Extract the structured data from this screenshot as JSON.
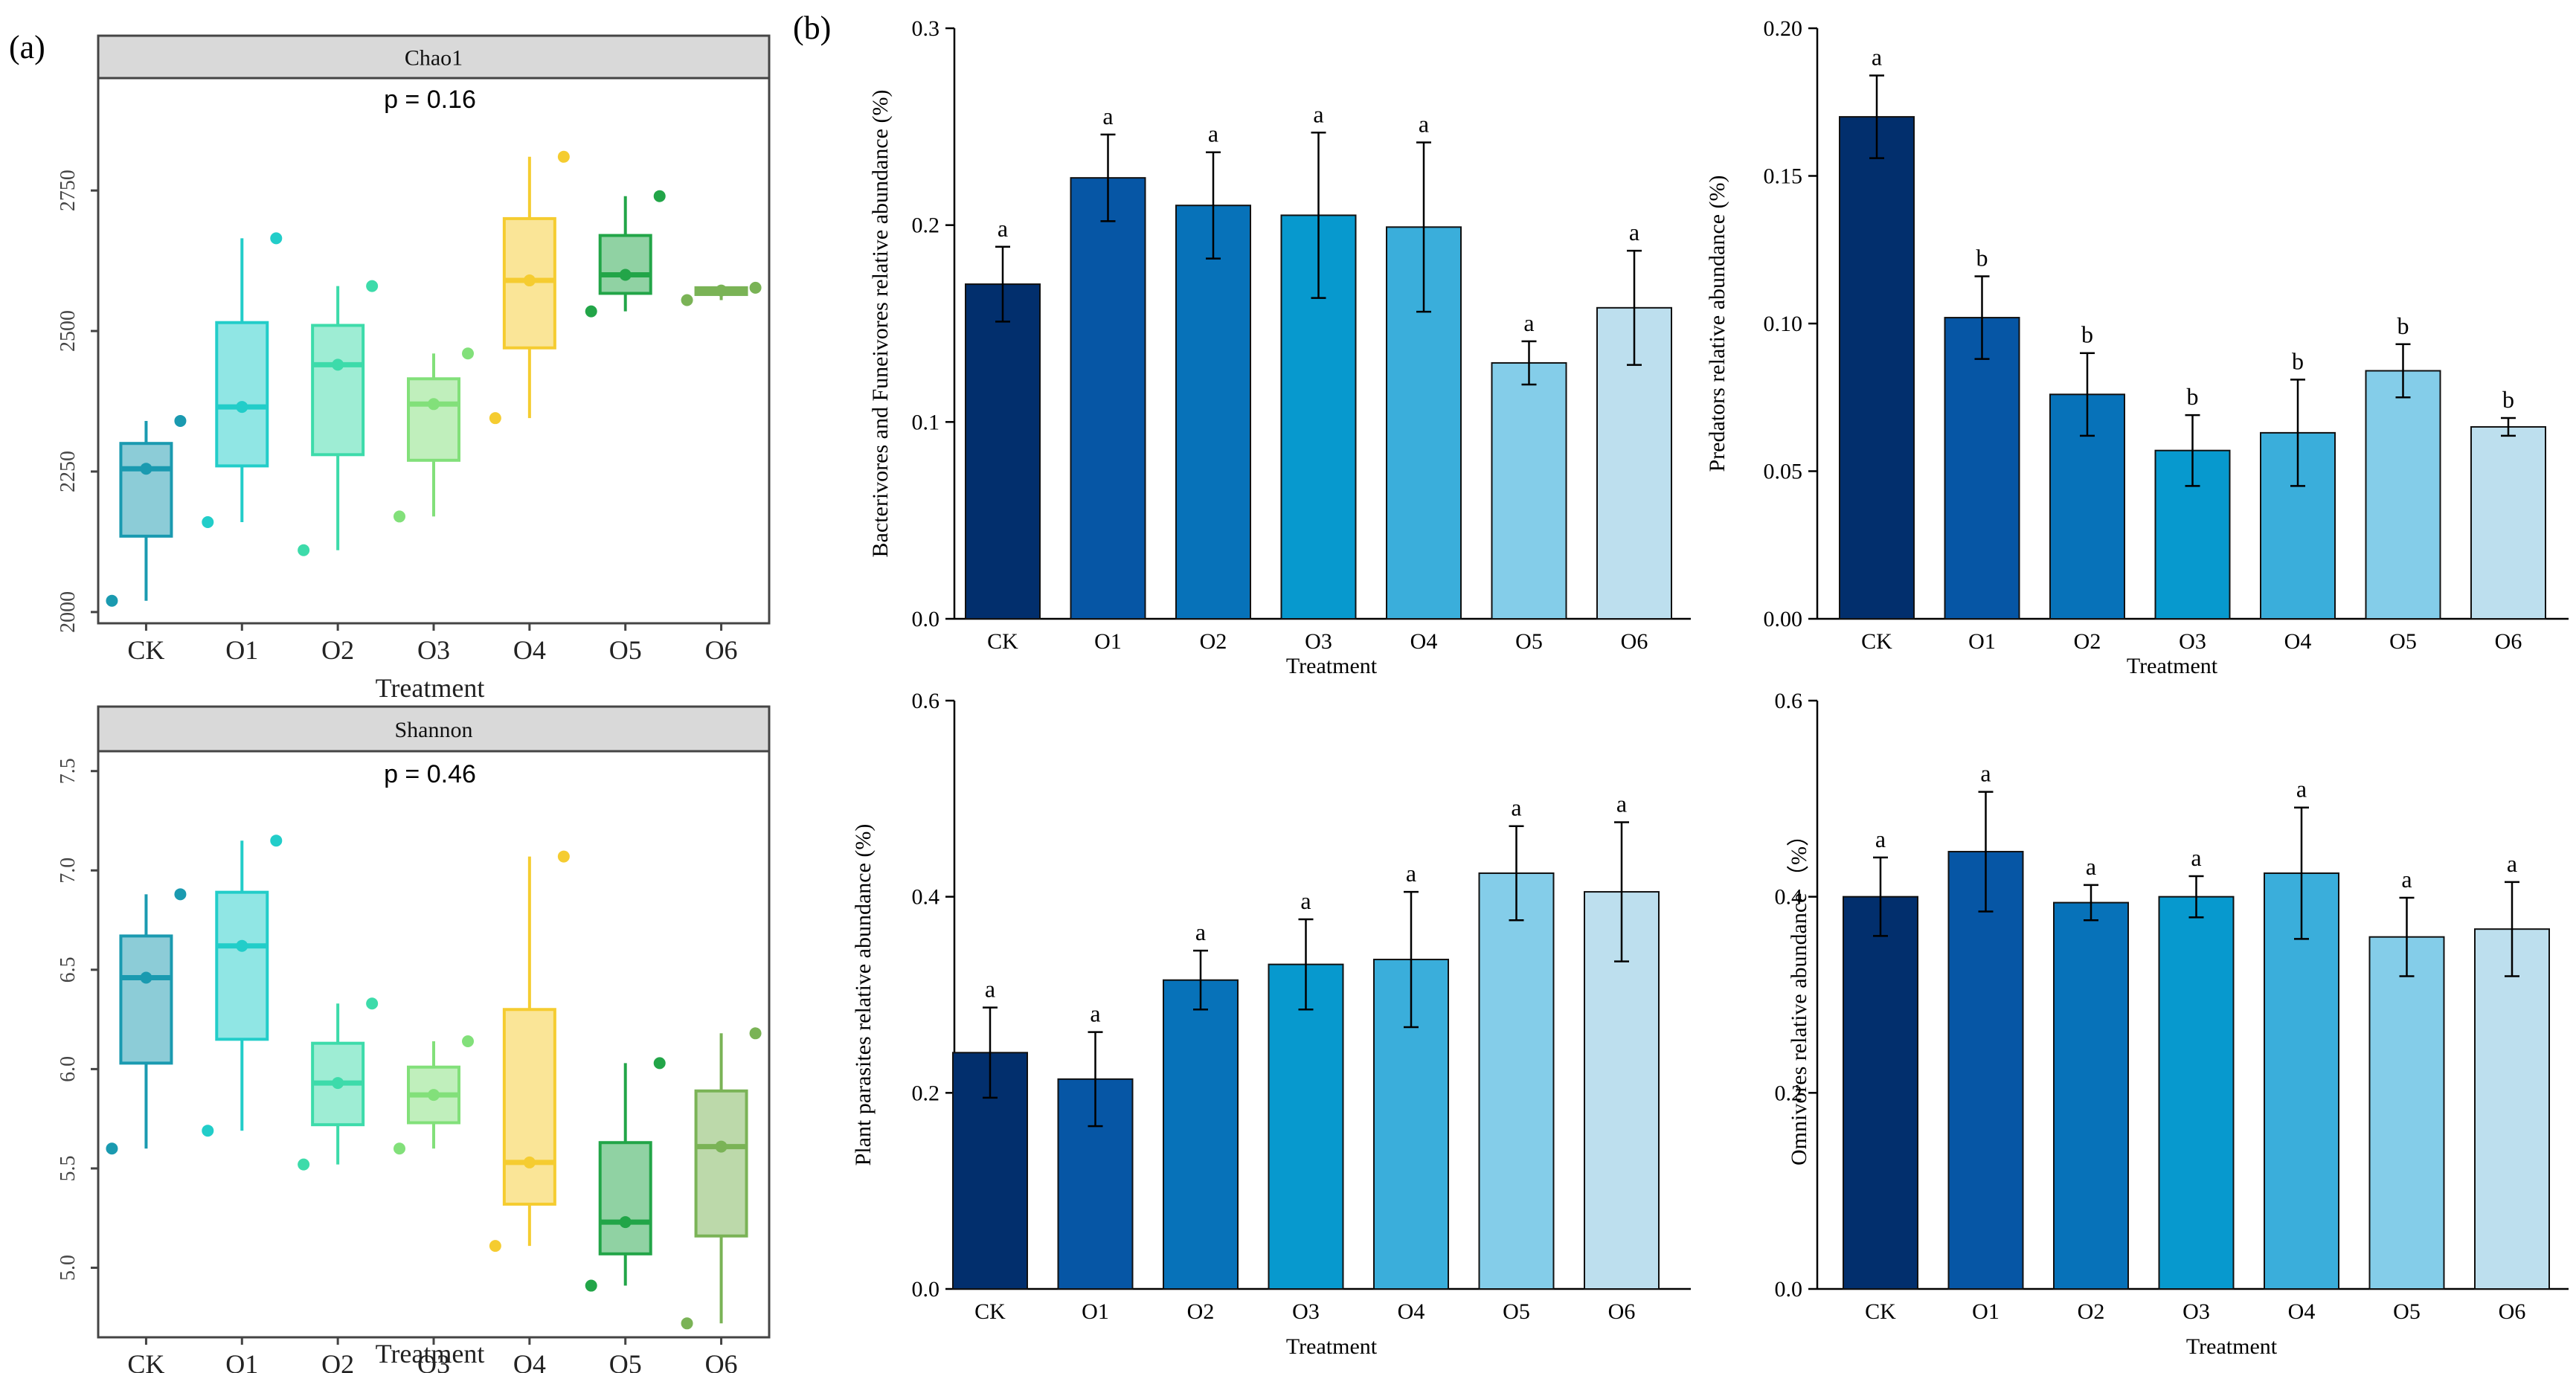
{
  "figure": {
    "panel_a_label": "(a)",
    "panel_b_label": "(b)",
    "treatments": [
      "CK",
      "O1",
      "O2",
      "O3",
      "O4",
      "O5",
      "O6"
    ],
    "box_colors": [
      "#1a9ab0",
      "#22cdc9",
      "#3ddbaa",
      "#82e07a",
      "#f5cc30",
      "#22a548",
      "#7ab356"
    ],
    "bar_colors": [
      "#022f6d",
      "#0656a5",
      "#0772b9",
      "#0799ce",
      "#3aaedb",
      "#84cde9",
      "#bddfee"
    ]
  },
  "chart_data": [
    {
      "id": "chao1",
      "type": "box",
      "strip_title": "Chao1",
      "annotation": "p = 0.16",
      "xlabel": "Treatment",
      "ylabel": "",
      "ylim": [
        1980,
        2950
      ],
      "yticks": [
        2000,
        2250,
        2500,
        2750
      ],
      "categories": [
        "CK",
        "O1",
        "O2",
        "O3",
        "O4",
        "O5",
        "O6"
      ],
      "boxes": [
        {
          "min": 2020,
          "q1": 2135,
          "median": 2255,
          "q3": 2300,
          "max": 2340,
          "points": [
            2020,
            2255,
            2340
          ]
        },
        {
          "min": 2160,
          "q1": 2260,
          "median": 2365,
          "q3": 2515,
          "max": 2665,
          "points": [
            2160,
            2365,
            2665
          ]
        },
        {
          "min": 2110,
          "q1": 2280,
          "median": 2440,
          "q3": 2510,
          "max": 2580,
          "points": [
            2110,
            2440,
            2580
          ]
        },
        {
          "min": 2170,
          "q1": 2270,
          "median": 2370,
          "q3": 2415,
          "max": 2460,
          "points": [
            2170,
            2370,
            2460
          ]
        },
        {
          "min": 2345,
          "q1": 2470,
          "median": 2590,
          "q3": 2700,
          "max": 2810,
          "points": [
            2345,
            2590,
            2810
          ]
        },
        {
          "min": 2535,
          "q1": 2567,
          "median": 2600,
          "q3": 2670,
          "max": 2740,
          "points": [
            2535,
            2600,
            2740
          ]
        },
        {
          "min": 2555,
          "q1": 2565,
          "median": 2572,
          "q3": 2577,
          "max": 2580,
          "points": [
            2555,
            2572,
            2577
          ]
        }
      ]
    },
    {
      "id": "shannon",
      "type": "box",
      "strip_title": "Shannon",
      "annotation": "p = 0.46",
      "xlabel": "Treatment",
      "ylabel": "",
      "ylim": [
        4.65,
        7.6
      ],
      "yticks": [
        5.0,
        5.5,
        6.0,
        6.5,
        7.0,
        7.5
      ],
      "ytick_labels": [
        "5.0",
        "5.5",
        "6.0",
        "6.5",
        "7.0",
        "7.5"
      ],
      "categories": [
        "CK",
        "O1",
        "O2",
        "O3",
        "O4",
        "O5",
        "O6"
      ],
      "boxes": [
        {
          "min": 5.6,
          "q1": 6.03,
          "median": 6.46,
          "q3": 6.67,
          "max": 6.88,
          "points": [
            5.6,
            6.46,
            6.88
          ]
        },
        {
          "min": 5.69,
          "q1": 6.15,
          "median": 6.62,
          "q3": 6.89,
          "max": 7.15,
          "points": [
            5.69,
            6.62,
            7.15
          ]
        },
        {
          "min": 5.52,
          "q1": 5.72,
          "median": 5.93,
          "q3": 6.13,
          "max": 6.33,
          "points": [
            5.52,
            5.93,
            6.33
          ]
        },
        {
          "min": 5.6,
          "q1": 5.73,
          "median": 5.87,
          "q3": 6.01,
          "max": 6.14,
          "points": [
            5.6,
            5.87,
            6.14
          ]
        },
        {
          "min": 5.11,
          "q1": 5.32,
          "median": 5.53,
          "q3": 6.3,
          "max": 7.07,
          "points": [
            5.11,
            5.53,
            7.07
          ]
        },
        {
          "min": 4.91,
          "q1": 5.07,
          "median": 5.23,
          "q3": 5.63,
          "max": 6.03,
          "points": [
            4.91,
            5.23,
            6.03
          ]
        },
        {
          "min": 4.72,
          "q1": 5.16,
          "median": 5.61,
          "q3": 5.89,
          "max": 6.18,
          "points": [
            4.72,
            5.61,
            6.18
          ]
        }
      ]
    },
    {
      "id": "bacterivores",
      "type": "bar",
      "title": "",
      "xlabel": "Treatment",
      "ylabel": "Bacterivores and Funeivores relative abundance (%)",
      "ylim": [
        0,
        0.3
      ],
      "yticks": [
        0,
        0.1,
        0.2,
        0.3
      ],
      "ytick_labels": [
        "0.0",
        "0.1",
        "0.2",
        "0.3"
      ],
      "categories": [
        "CK",
        "O1",
        "O2",
        "O3",
        "O4",
        "O5",
        "O6"
      ],
      "values": [
        0.17,
        0.224,
        0.21,
        0.205,
        0.199,
        0.13,
        0.158
      ],
      "errors": [
        0.019,
        0.022,
        0.027,
        0.042,
        0.043,
        0.011,
        0.029
      ],
      "letters": [
        "a",
        "a",
        "a",
        "a",
        "a",
        "a",
        "a"
      ]
    },
    {
      "id": "predators",
      "type": "bar",
      "title": "",
      "xlabel": "Treatment",
      "ylabel": "Predators relative abundance (%)",
      "ylim": [
        0,
        0.2
      ],
      "yticks": [
        0,
        0.05,
        0.1,
        0.15,
        0.2
      ],
      "ytick_labels": [
        "0.00",
        "0.05",
        "0.10",
        "0.15",
        "0.20"
      ],
      "categories": [
        "CK",
        "O1",
        "O2",
        "O3",
        "O4",
        "O5",
        "O6"
      ],
      "values": [
        0.17,
        0.102,
        0.076,
        0.057,
        0.063,
        0.084,
        0.065
      ],
      "errors": [
        0.014,
        0.014,
        0.014,
        0.012,
        0.018,
        0.009,
        0.003
      ],
      "letters": [
        "a",
        "b",
        "b",
        "b",
        "b",
        "b",
        "b"
      ]
    },
    {
      "id": "plant_parasites",
      "type": "bar",
      "title": "",
      "xlabel": "Treatment",
      "ylabel": "Plant parasites relative abundance (%)",
      "ylim": [
        0,
        0.6
      ],
      "yticks": [
        0,
        0.2,
        0.4,
        0.6
      ],
      "ytick_labels": [
        "0.0",
        "0.2",
        "0.4",
        "0.6"
      ],
      "categories": [
        "CK",
        "O1",
        "O2",
        "O3",
        "O4",
        "O5",
        "O6"
      ],
      "values": [
        0.241,
        0.214,
        0.315,
        0.331,
        0.336,
        0.424,
        0.405
      ],
      "errors": [
        0.046,
        0.048,
        0.03,
        0.046,
        0.069,
        0.048,
        0.071
      ],
      "letters": [
        "a",
        "a",
        "a",
        "a",
        "a",
        "a",
        "a"
      ]
    },
    {
      "id": "omnivores",
      "type": "bar",
      "title": "",
      "xlabel": "Treatment",
      "ylabel": "Omnivores relative abundance （%）",
      "ylim": [
        0,
        0.6
      ],
      "yticks": [
        0,
        0.2,
        0.4,
        0.6
      ],
      "ytick_labels": [
        "0.0",
        "0.2",
        "0.4",
        "0.6"
      ],
      "categories": [
        "CK",
        "O1",
        "O2",
        "O3",
        "O4",
        "O5",
        "O6"
      ],
      "values": [
        0.4,
        0.446,
        0.394,
        0.4,
        0.424,
        0.359,
        0.367
      ],
      "errors": [
        0.04,
        0.061,
        0.018,
        0.021,
        0.067,
        0.04,
        0.048
      ],
      "letters": [
        "a",
        "a",
        "a",
        "a",
        "a",
        "a",
        "a"
      ]
    }
  ]
}
